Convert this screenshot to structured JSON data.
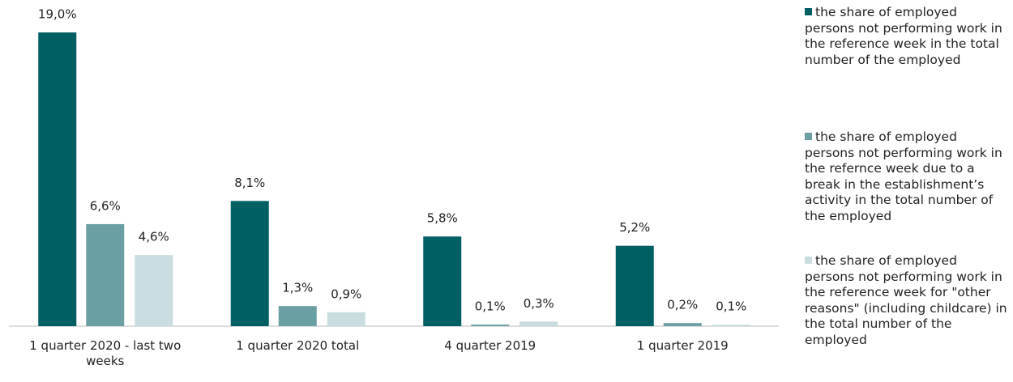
{
  "chart_data": {
    "type": "bar",
    "categories": [
      "1 quarter 2020 - last two weeks",
      "1 quarter 2020 total",
      "4 quarter 2019",
      "1 quarter 2019"
    ],
    "series": [
      {
        "name": "the share of employed persons not performing work in the reference week in the total number of the employed",
        "color": "#005f63",
        "values": [
          19.0,
          8.1,
          5.8,
          5.2
        ],
        "value_labels": [
          "19,0%",
          "8,1%",
          "5,8%",
          "5,2%"
        ]
      },
      {
        "name": "the share of employed persons not performing work in the refernce week due to a break in the establishment’s activity in the total number of the employed",
        "color": "#6a9fa3",
        "values": [
          6.6,
          1.3,
          0.1,
          0.2
        ],
        "value_labels": [
          "6,6%",
          "1,3%",
          "0,1%",
          "0,2%"
        ]
      },
      {
        "name": "the share of employed persons not performing work in the reference week for \"other reasons\" (including childcare) in the total number of the employed",
        "color": "#c9dde0",
        "values": [
          4.6,
          0.9,
          0.3,
          0.1
        ],
        "value_labels": [
          "4,6%",
          "0,9%",
          "0,3%",
          "0,1%"
        ]
      }
    ],
    "ylim": [
      0,
      20
    ],
    "legend": "right",
    "grid": false
  }
}
